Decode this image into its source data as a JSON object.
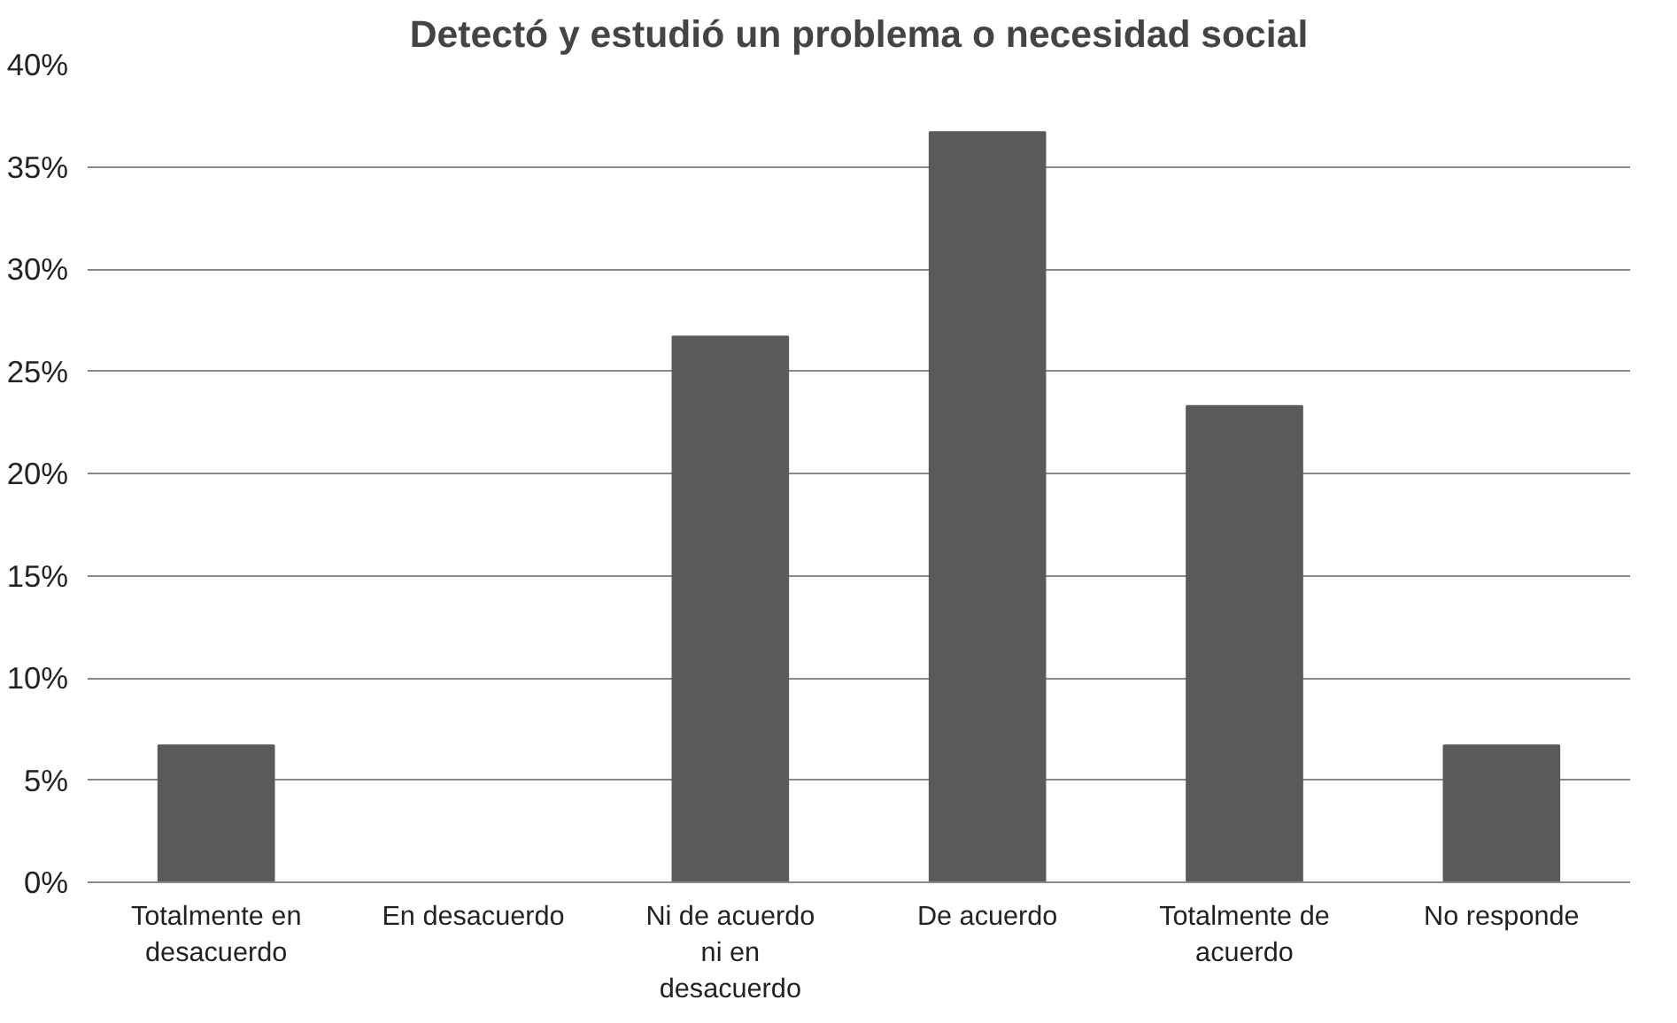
{
  "chart_data": {
    "type": "bar",
    "title": "Detectó y estudió un problema o necesidad social",
    "categories": [
      "Totalmente en desacuerdo",
      "En desacuerdo",
      "Ni de acuerdo ni en desacuerdo",
      "De acuerdo",
      "Totalmente de acuerdo",
      "No responde"
    ],
    "values": [
      6.7,
      0,
      26.7,
      36.7,
      23.3,
      6.7
    ],
    "color": "#5a5a5a",
    "ylim": [
      0,
      40
    ],
    "yticks": [
      {
        "value": 0,
        "label": "0%"
      },
      {
        "value": 5,
        "label": "5%"
      },
      {
        "value": 10,
        "label": "10%"
      },
      {
        "value": 15,
        "label": "15%"
      },
      {
        "value": 20,
        "label": "20%"
      },
      {
        "value": 25,
        "label": "25%"
      },
      {
        "value": 30,
        "label": "30%"
      },
      {
        "value": 35,
        "label": "35%"
      },
      {
        "value": 40,
        "label": "40%"
      }
    ],
    "grid": "y"
  }
}
